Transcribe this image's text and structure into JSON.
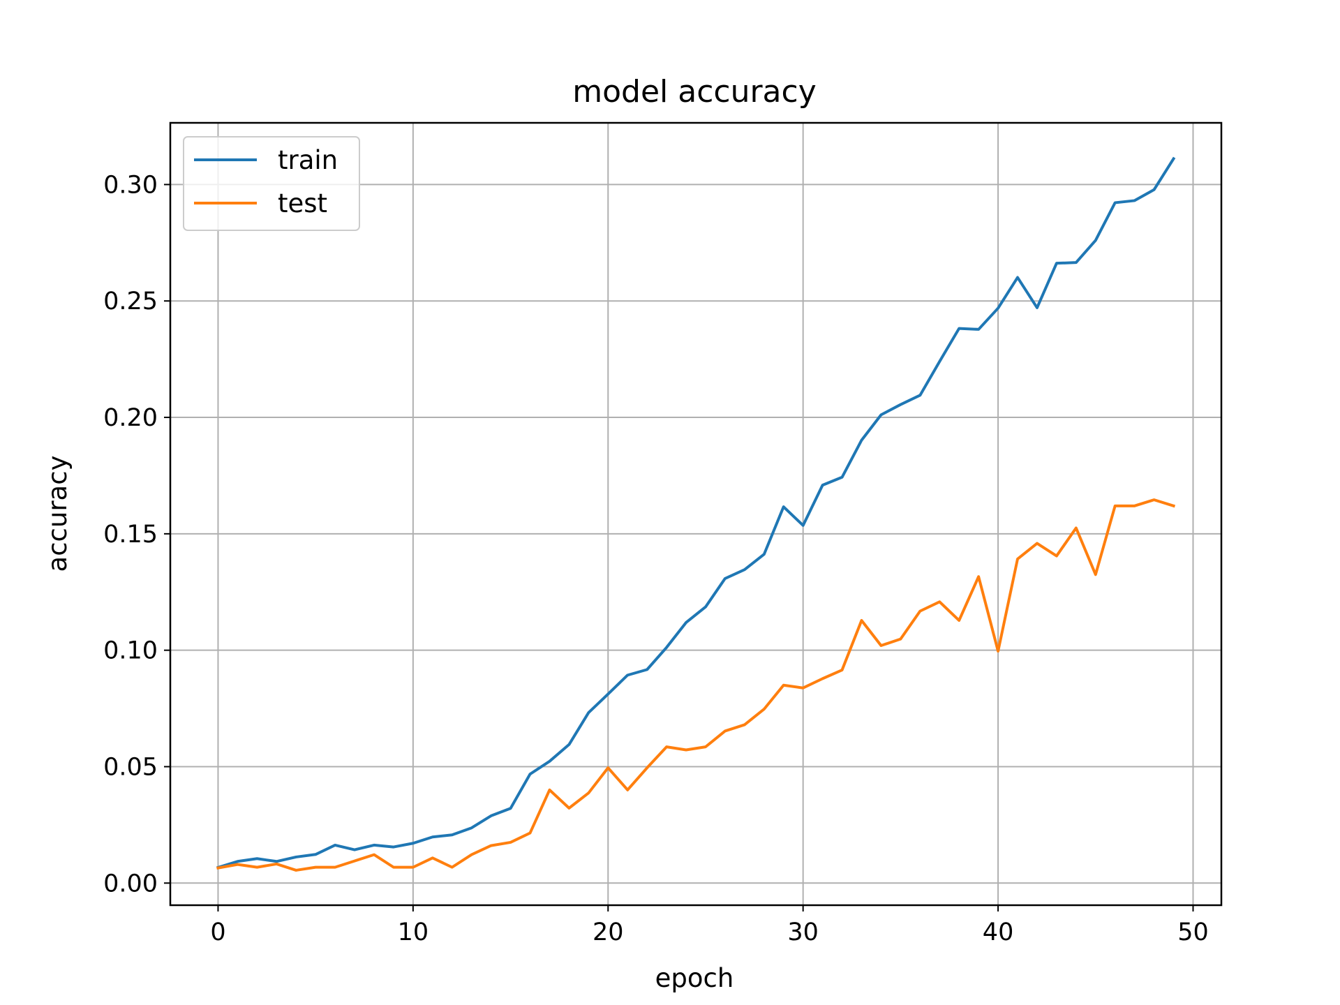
{
  "chart_data": {
    "type": "line",
    "title": "model accuracy",
    "xlabel": "epoch",
    "ylabel": "accuracy",
    "xlim": [
      -2.45,
      51.45
    ],
    "ylim": [
      -0.0095,
      0.3265
    ],
    "xticks": [
      0,
      10,
      20,
      30,
      40,
      50
    ],
    "xtick_labels": [
      "0",
      "10",
      "20",
      "30",
      "40",
      "50"
    ],
    "yticks": [
      0.0,
      0.05,
      0.1,
      0.15,
      0.2,
      0.25,
      0.3
    ],
    "ytick_labels": [
      "0.00",
      "0.05",
      "0.10",
      "0.15",
      "0.20",
      "0.25",
      "0.30"
    ],
    "grid": true,
    "legend_position": "top-left",
    "x": [
      0,
      1,
      2,
      3,
      4,
      5,
      6,
      7,
      8,
      9,
      10,
      11,
      12,
      13,
      14,
      15,
      16,
      17,
      18,
      19,
      20,
      21,
      22,
      23,
      24,
      25,
      26,
      27,
      28,
      29,
      30,
      31,
      32,
      33,
      34,
      35,
      36,
      37,
      38,
      39,
      40,
      41,
      42,
      43,
      44,
      45,
      46,
      47,
      48,
      49
    ],
    "series": [
      {
        "name": "train",
        "color": "#1f77b4",
        "values": [
          0.0067,
          0.0093,
          0.0105,
          0.0093,
          0.0112,
          0.0123,
          0.0163,
          0.0143,
          0.0163,
          0.0155,
          0.0171,
          0.0198,
          0.0207,
          0.0237,
          0.0289,
          0.0321,
          0.0468,
          0.0523,
          0.0595,
          0.0732,
          0.0812,
          0.0893,
          0.0917,
          0.1012,
          0.1119,
          0.1186,
          0.1308,
          0.1346,
          0.1412,
          0.1616,
          0.1536,
          0.1709,
          0.1743,
          0.1902,
          0.2011,
          0.2055,
          0.2095,
          0.224,
          0.2382,
          0.2378,
          0.2469,
          0.2601,
          0.2471,
          0.2662,
          0.2665,
          0.276,
          0.2922,
          0.2931,
          0.2978,
          0.3111
        ]
      },
      {
        "name": "test",
        "color": "#ff7f0e",
        "values": [
          0.0065,
          0.008,
          0.0068,
          0.0082,
          0.0055,
          0.0068,
          0.0068,
          0.0095,
          0.0122,
          0.0068,
          0.0068,
          0.0108,
          0.0068,
          0.0122,
          0.0161,
          0.0175,
          0.0215,
          0.04,
          0.0322,
          0.0387,
          0.0495,
          0.04,
          0.0495,
          0.0585,
          0.0572,
          0.0585,
          0.0653,
          0.068,
          0.0747,
          0.085,
          0.0838,
          0.0878,
          0.0915,
          0.1128,
          0.102,
          0.1048,
          0.1168,
          0.1208,
          0.1128,
          0.1316,
          0.0996,
          0.1392,
          0.1459,
          0.1405,
          0.1525,
          0.1325,
          0.162,
          0.162,
          0.1646,
          0.162
        ]
      }
    ]
  }
}
